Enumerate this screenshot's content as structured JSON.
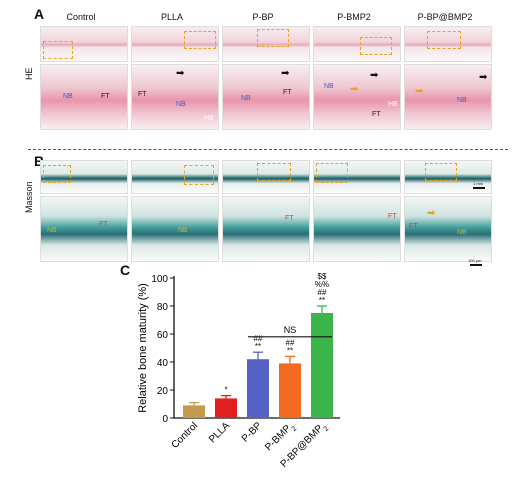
{
  "panels": {
    "a": "A",
    "b": "B",
    "c": "C"
  },
  "rows": {
    "he": "HE",
    "masson": "Masson"
  },
  "columns": [
    "Control",
    "PLLA",
    "P-BP",
    "P-BMP2",
    "P-BP@BMP2"
  ],
  "annotations": {
    "nb": "NB",
    "ft": "FT",
    "hb": "HB",
    "scale_top": "1 mm",
    "scale_bottom": "100 μm"
  },
  "colors": {
    "control": "#c49a4c",
    "plla": "#e02020",
    "pbp": "#5561c4",
    "pbmp2": "#f26a1f",
    "pbpbmp2": "#3bb54a",
    "inset_box": "#e8a41a"
  },
  "chart_data": {
    "type": "bar",
    "categories": [
      "Control",
      "PLLA",
      "P-BP",
      "P-BMP2",
      "P-BP@BMP2"
    ],
    "category_labels": [
      {
        "text": "Control",
        "sub": ""
      },
      {
        "text": "PLLA",
        "sub": ""
      },
      {
        "text": "P-BP",
        "sub": ""
      },
      {
        "text": "P-BMP",
        "sub": "2"
      },
      {
        "text": "P-BP@BMP",
        "sub": "2"
      }
    ],
    "values": [
      9,
      14,
      42,
      39,
      75
    ],
    "errors": [
      2,
      2,
      5,
      5,
      5
    ],
    "significance": [
      [],
      [
        "*"
      ],
      [
        "##",
        "**"
      ],
      [
        "##",
        "**"
      ],
      [
        "$$",
        "%%",
        "##",
        "**"
      ]
    ],
    "bracket_label": "NS",
    "bracket_span": [
      "P-BP",
      "P-BP@BMP2"
    ],
    "ylabel": "Relative bone maturity (%)",
    "xlabel": "",
    "ylim": [
      0,
      100
    ],
    "yticks": [
      0,
      20,
      40,
      60,
      80,
      100
    ]
  }
}
